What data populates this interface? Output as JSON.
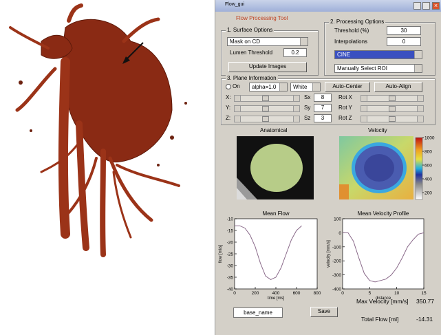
{
  "window_title": "Flow_gui",
  "tool_title": "Flow Processing Tool",
  "surface_options": {
    "title": "1. Surface Options",
    "mask": "Mask on CD",
    "lumen_threshold_label": "Lumen Threshold",
    "lumen_threshold": 0.2,
    "update_button": "Update Images"
  },
  "processing_options": {
    "title": "2. Processing Options",
    "threshold_label": "Threshold (%)",
    "threshold": 30,
    "interpolations_label": "Interpolations",
    "interpolations": 0,
    "mode": "CINE",
    "roi": "Manually Select ROI"
  },
  "plane_information": {
    "title": "3. Plane Information",
    "on_label": "On",
    "alpha": "alpha=1.0",
    "color": "White",
    "auto_center": "Auto-Center",
    "auto_align": "Auto-Align",
    "rows": [
      {
        "label": "X:",
        "size_label": "Sx",
        "size": 8,
        "rot_label": "Rot X"
      },
      {
        "label": "Y:",
        "size_label": "Sy",
        "size": 7,
        "rot_label": "Rot Y"
      },
      {
        "label": "Z:",
        "size_label": "Sz",
        "size": 3,
        "rot_label": "Rot Z"
      }
    ]
  },
  "anatomical": {
    "title": "Anatomical"
  },
  "velocity": {
    "title": "Velocity",
    "colorbar_lim": [
      100,
      1000
    ],
    "colorbar_ticks": [
      1000,
      800,
      600,
      400,
      200
    ]
  },
  "plots": [
    {
      "title": "Mean Flow",
      "xlabel": "time [ms]",
      "ylabel": "flow [ml/s]",
      "x": [
        0,
        50,
        100,
        150,
        200,
        250,
        300,
        350,
        400,
        450,
        500,
        550,
        600,
        650
      ],
      "values": [
        -13,
        -13,
        -14,
        -17,
        -22,
        -29,
        -34.5,
        -36,
        -35,
        -31,
        -25,
        -19,
        -15,
        -13
      ],
      "xlim": [
        0,
        800
      ],
      "ylim": [
        -40,
        -10
      ],
      "xticks": [
        0,
        200,
        400,
        600,
        800
      ],
      "yticks": [
        -10,
        -15,
        -20,
        -25,
        -30,
        -35,
        -40
      ]
    },
    {
      "title": "Mean Velocity Profile",
      "xlabel": "distance",
      "ylabel": "velocity [mm/s]",
      "x": [
        0,
        1,
        2,
        3,
        4,
        5,
        6,
        7,
        8,
        9,
        10,
        11,
        12,
        13,
        14,
        15
      ],
      "values": [
        0,
        0,
        -60,
        -180,
        -290,
        -340,
        -350,
        -340,
        -330,
        -300,
        -250,
        -180,
        -100,
        -50,
        -10,
        0
      ],
      "xlim": [
        0,
        15
      ],
      "ylim": [
        -400,
        100
      ],
      "xticks": [
        0,
        5,
        10,
        15
      ],
      "yticks": [
        100,
        0,
        -100,
        -200,
        -300,
        -400
      ]
    }
  ],
  "results": {
    "max_velocity_label": "Max Velocity [mm/s]",
    "max_velocity": 350.77,
    "total_flow_label": "Total Flow [ml]",
    "total_flow": -14.31
  },
  "save": {
    "filename": "base_name",
    "button": "Save"
  }
}
